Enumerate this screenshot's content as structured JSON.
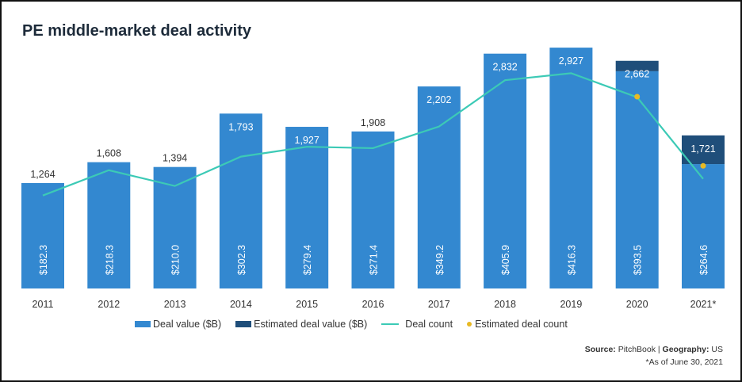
{
  "title": "PE middle-market deal activity",
  "chart_data": {
    "type": "bar",
    "categories": [
      "2011",
      "2012",
      "2013",
      "2014",
      "2015",
      "2016",
      "2017",
      "2018",
      "2019",
      "2020",
      "2021*"
    ],
    "series": [
      {
        "name": "Deal value ($B)",
        "values": [
          182.3,
          218.3,
          210.0,
          302.3,
          279.4,
          271.4,
          349.2,
          405.9,
          416.3,
          375.5,
          215.0
        ]
      },
      {
        "name": "Estimated deal value ($B)",
        "values": [
          0,
          0,
          0,
          0,
          0,
          0,
          0,
          0,
          0,
          18.0,
          49.6
        ]
      },
      {
        "name": "Deal count",
        "type": "line",
        "values": [
          1264,
          1608,
          1394,
          1793,
          1927,
          1908,
          2202,
          2832,
          2927,
          2600,
          1490
        ]
      },
      {
        "name": "Estimated deal count",
        "type": "scatter",
        "values": [
          null,
          null,
          null,
          null,
          null,
          null,
          null,
          null,
          null,
          2662,
          1721
        ]
      }
    ],
    "value_labels": [
      "$182.3",
      "$218.3",
      "$210.0",
      "$302.3",
      "$279.4",
      "$271.4",
      "$349.2",
      "$405.9",
      "$416.3",
      "$393.5",
      "$264.6"
    ],
    "count_labels": [
      "1,264",
      "1,608",
      "1,394",
      "1,793",
      "1,927",
      "1,908",
      "2,202",
      "2,832",
      "2,927",
      "2,662",
      "1,721"
    ],
    "grid": false,
    "legend_placement": "bottom",
    "colors": {
      "deal_value": "#3388d0",
      "estimated_deal_value": "#1f4e7a",
      "deal_count": "#3ccab6",
      "estimated_deal_count": "#e8b923"
    }
  },
  "source": {
    "source_label": "Source:",
    "source_value": " PitchBook | ",
    "geo_label": "Geography:",
    "geo_value": " US",
    "note": "*As of June 30, 2021"
  }
}
